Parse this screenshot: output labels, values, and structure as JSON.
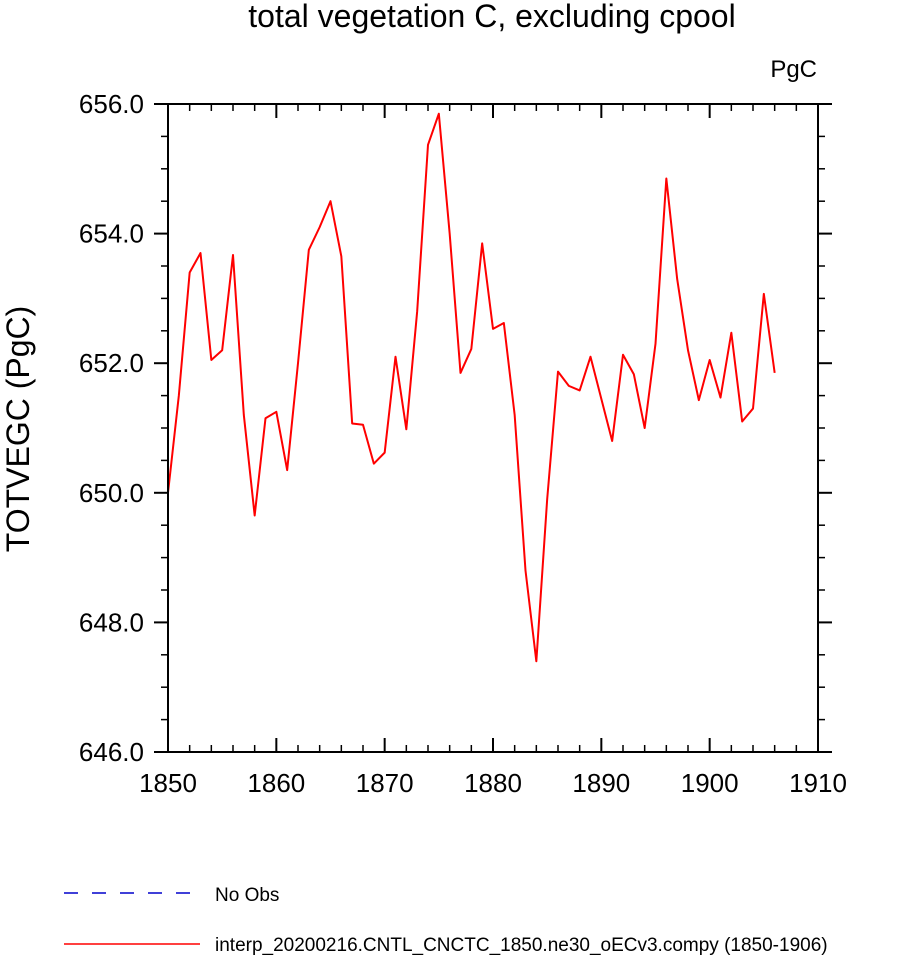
{
  "chart_data": {
    "type": "line",
    "title": "total vegetation C, excluding cpool",
    "units_label": "PgC",
    "ylabel": "TOTVEGC  (PgC)",
    "xlabel": "",
    "xlim": [
      1850,
      1910
    ],
    "ylim": [
      646,
      656
    ],
    "xticks": [
      1850,
      1860,
      1870,
      1880,
      1890,
      1900,
      1910
    ],
    "xtick_labels": [
      "1850",
      "1860",
      "1870",
      "1880",
      "1890",
      "1900",
      "1910"
    ],
    "yticks": [
      646,
      648,
      650,
      652,
      654,
      656
    ],
    "ytick_labels": [
      "646.0",
      "648.0",
      "650.0",
      "652.0",
      "654.0",
      "656.0"
    ],
    "grid": false,
    "legend_position": "bottom",
    "colors": {
      "model": "#ff0000",
      "obs": "#0000cc"
    },
    "series": [
      {
        "name": "interp_20200216.CNTL_CNCTC_1850.ne30_oECv3.compy (1850-1906)",
        "color": "#ff0000",
        "x": [
          1850,
          1851,
          1852,
          1853,
          1854,
          1855,
          1856,
          1857,
          1858,
          1859,
          1860,
          1861,
          1862,
          1863,
          1864,
          1865,
          1866,
          1867,
          1868,
          1869,
          1870,
          1871,
          1872,
          1873,
          1874,
          1875,
          1876,
          1877,
          1878,
          1879,
          1880,
          1881,
          1882,
          1883,
          1884,
          1885,
          1886,
          1887,
          1888,
          1889,
          1890,
          1891,
          1892,
          1893,
          1894,
          1895,
          1896,
          1897,
          1898,
          1899,
          1900,
          1901,
          1902,
          1903,
          1904,
          1905,
          1906
        ],
        "y": [
          650.0,
          651.5,
          653.4,
          653.7,
          652.05,
          652.2,
          653.67,
          651.2,
          649.65,
          651.15,
          651.25,
          650.35,
          652.0,
          653.75,
          654.1,
          654.5,
          653.65,
          651.07,
          651.05,
          650.45,
          650.62,
          652.1,
          650.98,
          652.8,
          655.37,
          655.85,
          654.0,
          651.85,
          652.22,
          653.85,
          652.53,
          652.62,
          651.2,
          648.8,
          647.4,
          649.9,
          651.87,
          651.65,
          651.58,
          652.1,
          651.45,
          650.8,
          652.13,
          651.83,
          651.0,
          652.3,
          654.85,
          653.3,
          652.2,
          651.43,
          652.05,
          651.47,
          652.47,
          651.1,
          651.3,
          653.07,
          651.85
        ]
      }
    ],
    "legend": [
      {
        "label": "No Obs",
        "style": "dashed",
        "color": "#0000cc"
      },
      {
        "label": "interp_20200216.CNTL_CNCTC_1850.ne30_oECv3.compy (1850-1906)",
        "style": "solid",
        "color": "#ff0000"
      }
    ]
  }
}
